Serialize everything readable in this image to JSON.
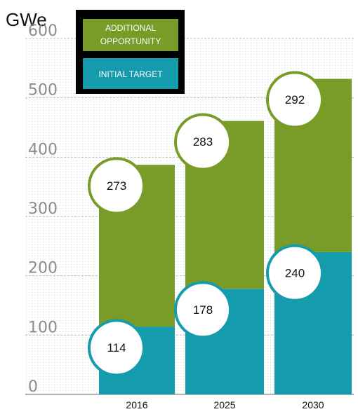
{
  "chart_data": {
    "type": "bar",
    "stacked": true,
    "unit_label": "GWe",
    "categories": [
      "2016",
      "2025",
      "2030"
    ],
    "y_ticks": [
      "0",
      "100",
      "200",
      "300",
      "400",
      "500",
      "600"
    ],
    "ylim": [
      0,
      600
    ],
    "grid": true,
    "legend_position": "top-left",
    "series": [
      {
        "name": "INITIAL TARGET",
        "values": [
          114,
          178,
          240
        ],
        "color": "#149bac"
      },
      {
        "name": "ADDITIONAL OPPORTUNITY",
        "values": [
          273,
          283,
          292
        ],
        "color": "#789c27"
      }
    ],
    "legend": [
      {
        "line1": "ADDITIONAL",
        "line2": "OPPORTUNITY",
        "color": "#789c27"
      },
      {
        "line1": "INITIAL TARGET",
        "line2": "",
        "color": "#149bac"
      }
    ]
  }
}
